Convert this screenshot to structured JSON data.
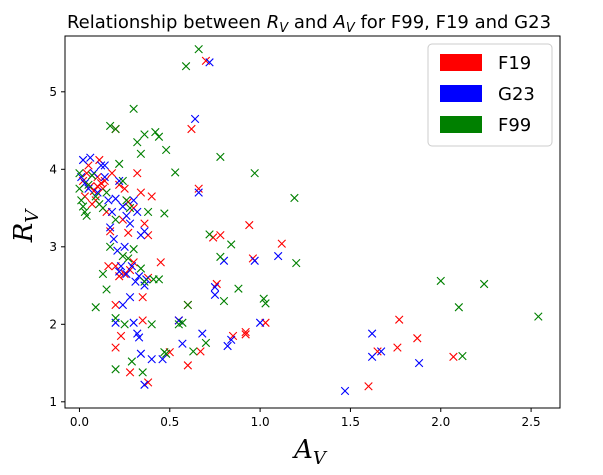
{
  "chart_data": {
    "type": "scatter",
    "title": {
      "prefix": "Relationship between ",
      "r": "R",
      "sub": "V",
      "and": " and ",
      "a": "A",
      "suffix": " for F99, F19 and G23"
    },
    "xlabel": {
      "main": "A",
      "sub": "V"
    },
    "ylabel": {
      "main": "R",
      "sub": "V"
    },
    "xlim": [
      -0.08,
      2.66
    ],
    "ylim": [
      0.92,
      5.72
    ],
    "xticks": [
      0.0,
      0.5,
      1.0,
      1.5,
      2.0,
      2.5
    ],
    "xtick_labels": [
      "0.0",
      "0.5",
      "1.0",
      "1.5",
      "2.0",
      "2.5"
    ],
    "yticks": [
      1,
      2,
      3,
      4,
      5
    ],
    "ytick_labels": [
      "1",
      "2",
      "3",
      "4",
      "5"
    ],
    "marker": "x",
    "legend_position": "top-right",
    "series": [
      {
        "name": "F19",
        "color": "#ff0000",
        "points": [
          [
            0.02,
            3.85
          ],
          [
            0.04,
            3.95
          ],
          [
            0.06,
            3.78
          ],
          [
            0.08,
            3.72
          ],
          [
            0.1,
            3.9
          ],
          [
            0.12,
            3.82
          ],
          [
            0.03,
            3.65
          ],
          [
            0.05,
            4.05
          ],
          [
            0.07,
            3.55
          ],
          [
            0.09,
            3.6
          ],
          [
            0.11,
            4.12
          ],
          [
            0.13,
            3.75
          ],
          [
            0.15,
            3.45
          ],
          [
            0.18,
            3.95
          ],
          [
            0.2,
            4.52
          ],
          [
            0.22,
            3.8
          ],
          [
            0.25,
            3.75
          ],
          [
            0.27,
            3.58
          ],
          [
            0.3,
            3.5
          ],
          [
            0.32,
            3.95
          ],
          [
            0.34,
            3.7
          ],
          [
            0.36,
            3.3
          ],
          [
            0.38,
            3.15
          ],
          [
            0.4,
            3.65
          ],
          [
            0.17,
            3.2
          ],
          [
            0.2,
            2.75
          ],
          [
            0.22,
            2.62
          ],
          [
            0.25,
            2.65
          ],
          [
            0.28,
            2.7
          ],
          [
            0.3,
            2.8
          ],
          [
            0.35,
            2.35
          ],
          [
            0.38,
            2.6
          ],
          [
            0.45,
            2.8
          ],
          [
            0.55,
            2.05
          ],
          [
            0.6,
            2.25
          ],
          [
            0.62,
            4.52
          ],
          [
            0.66,
            3.75
          ],
          [
            0.7,
            5.4
          ],
          [
            0.74,
            3.12
          ],
          [
            0.76,
            2.52
          ],
          [
            0.78,
            3.15
          ],
          [
            0.92,
            1.9
          ],
          [
            0.94,
            3.28
          ],
          [
            0.96,
            2.85
          ],
          [
            1.03,
            2.02
          ],
          [
            1.12,
            3.04
          ],
          [
            0.2,
            2.25
          ],
          [
            0.23,
            1.85
          ],
          [
            0.2,
            1.7
          ],
          [
            0.28,
            1.38
          ],
          [
            0.35,
            2.05
          ],
          [
            0.38,
            1.25
          ],
          [
            0.5,
            1.64
          ],
          [
            0.6,
            1.47
          ],
          [
            0.67,
            1.65
          ],
          [
            0.85,
            1.85
          ],
          [
            0.92,
            1.87
          ],
          [
            1.6,
            1.2
          ],
          [
            1.65,
            1.65
          ],
          [
            1.77,
            2.06
          ],
          [
            1.76,
            1.7
          ],
          [
            1.87,
            1.82
          ],
          [
            2.07,
            1.58
          ],
          [
            0.1,
            3.78
          ],
          [
            0.14,
            3.85
          ],
          [
            0.24,
            3.35
          ],
          [
            0.16,
            2.75
          ],
          [
            0.27,
            3.18
          ]
        ]
      },
      {
        "name": "G23",
        "color": "#0000ff",
        "points": [
          [
            0.01,
            3.9
          ],
          [
            0.03,
            3.82
          ],
          [
            0.05,
            3.75
          ],
          [
            0.02,
            4.12
          ],
          [
            0.06,
            4.15
          ],
          [
            0.08,
            3.95
          ],
          [
            0.1,
            3.7
          ],
          [
            0.12,
            4.05
          ],
          [
            0.14,
            3.9
          ],
          [
            0.16,
            3.6
          ],
          [
            0.18,
            3.45
          ],
          [
            0.2,
            3.62
          ],
          [
            0.22,
            3.85
          ],
          [
            0.24,
            3.52
          ],
          [
            0.26,
            3.4
          ],
          [
            0.28,
            3.3
          ],
          [
            0.3,
            3.6
          ],
          [
            0.32,
            3.45
          ],
          [
            0.34,
            3.15
          ],
          [
            0.36,
            3.2
          ],
          [
            0.17,
            3.25
          ],
          [
            0.19,
            3.1
          ],
          [
            0.21,
            2.95
          ],
          [
            0.23,
            2.75
          ],
          [
            0.26,
            2.65
          ],
          [
            0.29,
            2.75
          ],
          [
            0.31,
            2.55
          ],
          [
            0.33,
            2.62
          ],
          [
            0.36,
            2.5
          ],
          [
            0.37,
            2.58
          ],
          [
            0.2,
            2.02
          ],
          [
            0.24,
            2.25
          ],
          [
            0.3,
            2.02
          ],
          [
            0.32,
            1.88
          ],
          [
            0.33,
            1.83
          ],
          [
            0.34,
            1.62
          ],
          [
            0.36,
            1.22
          ],
          [
            0.4,
            1.55
          ],
          [
            0.46,
            1.55
          ],
          [
            0.55,
            2.05
          ],
          [
            0.57,
            1.75
          ],
          [
            0.66,
            3.7
          ],
          [
            0.68,
            1.88
          ],
          [
            0.72,
            5.38
          ],
          [
            0.64,
            4.65
          ],
          [
            0.75,
            2.38
          ],
          [
            0.75,
            2.48
          ],
          [
            0.8,
            2.82
          ],
          [
            0.82,
            1.72
          ],
          [
            0.84,
            1.8
          ],
          [
            0.97,
            2.82
          ],
          [
            1.0,
            2.02
          ],
          [
            1.1,
            2.88
          ],
          [
            1.47,
            1.14
          ],
          [
            1.62,
            1.88
          ],
          [
            1.62,
            1.58
          ],
          [
            1.67,
            1.65
          ],
          [
            1.88,
            1.5
          ],
          [
            0.14,
            4.05
          ],
          [
            0.25,
            3.0
          ],
          [
            0.28,
            2.35
          ],
          [
            0.22,
            2.68
          ]
        ]
      },
      {
        "name": "F99",
        "color": "#008000",
        "points": [
          [
            0.0,
            3.95
          ],
          [
            0.0,
            3.75
          ],
          [
            0.01,
            3.6
          ],
          [
            0.02,
            3.52
          ],
          [
            0.03,
            3.45
          ],
          [
            0.04,
            3.4
          ],
          [
            0.05,
            3.8
          ],
          [
            0.07,
            3.92
          ],
          [
            0.09,
            3.65
          ],
          [
            0.11,
            3.55
          ],
          [
            0.13,
            3.5
          ],
          [
            0.15,
            3.7
          ],
          [
            0.17,
            4.56
          ],
          [
            0.2,
            4.52
          ],
          [
            0.22,
            4.07
          ],
          [
            0.24,
            3.85
          ],
          [
            0.26,
            3.6
          ],
          [
            0.28,
            3.5
          ],
          [
            0.3,
            4.78
          ],
          [
            0.32,
            4.35
          ],
          [
            0.34,
            4.2
          ],
          [
            0.36,
            4.45
          ],
          [
            0.38,
            3.45
          ],
          [
            0.42,
            4.48
          ],
          [
            0.44,
            4.42
          ],
          [
            0.48,
            4.25
          ],
          [
            0.53,
            3.96
          ],
          [
            0.59,
            5.33
          ],
          [
            0.66,
            5.55
          ],
          [
            0.78,
            4.16
          ],
          [
            0.97,
            3.95
          ],
          [
            1.19,
            3.63
          ],
          [
            0.17,
            3.0
          ],
          [
            0.2,
            3.35
          ],
          [
            0.24,
            2.88
          ],
          [
            0.27,
            2.85
          ],
          [
            0.3,
            2.97
          ],
          [
            0.34,
            2.72
          ],
          [
            0.36,
            2.55
          ],
          [
            0.41,
            2.58
          ],
          [
            0.44,
            2.58
          ],
          [
            0.47,
            3.43
          ],
          [
            0.13,
            2.65
          ],
          [
            0.15,
            2.45
          ],
          [
            0.2,
            2.08
          ],
          [
            0.09,
            2.22
          ],
          [
            0.2,
            1.42
          ],
          [
            0.29,
            1.52
          ],
          [
            0.35,
            1.38
          ],
          [
            0.47,
            1.64
          ],
          [
            0.48,
            1.62
          ],
          [
            0.55,
            2.0
          ],
          [
            0.57,
            2.02
          ],
          [
            0.6,
            2.25
          ],
          [
            0.63,
            1.65
          ],
          [
            0.72,
            3.16
          ],
          [
            0.78,
            2.87
          ],
          [
            0.8,
            2.3
          ],
          [
            0.84,
            3.03
          ],
          [
            0.88,
            2.46
          ],
          [
            1.02,
            2.33
          ],
          [
            1.03,
            2.27
          ],
          [
            1.2,
            2.79
          ],
          [
            2.0,
            2.56
          ],
          [
            2.1,
            2.22
          ],
          [
            2.12,
            1.59
          ],
          [
            2.24,
            2.52
          ],
          [
            2.54,
            2.1
          ],
          [
            0.7,
            1.76
          ],
          [
            0.4,
            2.0
          ],
          [
            0.25,
            2.0
          ]
        ]
      }
    ]
  }
}
